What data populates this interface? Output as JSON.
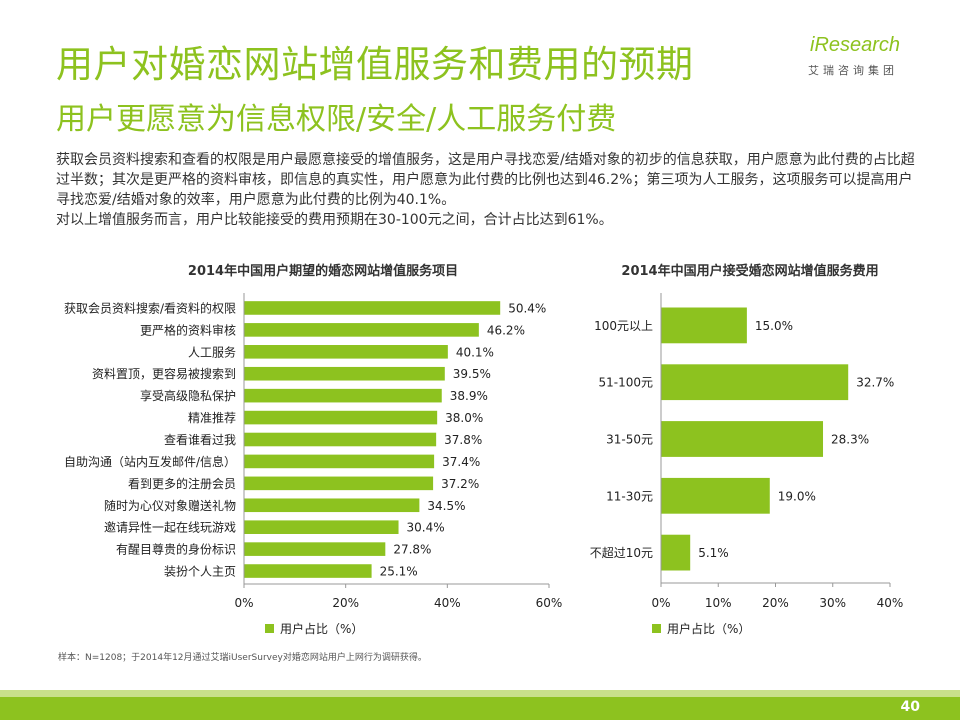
{
  "header": {
    "title": "用户对婚恋网站增值服务和费用的预期",
    "subtitle": "用户更愿意为信息权限/安全/人工服务付费"
  },
  "logo": {
    "brand": "iResearch",
    "brand_cn": "艾瑞咨询集团"
  },
  "intro": {
    "paragraph1": "获取会员资料搜索和查看的权限是用户最愿意接受的增值服务，这是用户寻找恋爱/结婚对象的初步的信息获取，用户愿意为此付费的占比超过半数；其次是更严格的资料审核，即信息的真实性，用户愿意为此付费的比例也达到46.2%；第三项为人工服务，这项服务可以提高用户寻找恋爱/结婚对象的效率，用户愿意为此付费的比例为40.1%。",
    "paragraph2": "对以上增值服务而言，用户比较能接受的费用预期在30-100元之间，合计占比达到61%。"
  },
  "chart_data": [
    {
      "type": "bar",
      "orientation": "horizontal",
      "title": "2014年中国用户期望的婚恋网站增值服务项目",
      "categories": [
        "获取会员资料搜索/看资料的权限",
        "更严格的资料审核",
        "人工服务",
        "资料置顶，更容易被搜索到",
        "享受高级隐私保护",
        "精准推荐",
        "查看谁看过我",
        "自助沟通（站内互发邮件/信息）",
        "看到更多的注册会员",
        "随时为心仪对象赠送礼物",
        "邀请异性一起在线玩游戏",
        "有醒目尊贵的身份标识",
        "装扮个人主页"
      ],
      "values": [
        50.4,
        46.2,
        40.1,
        39.5,
        38.9,
        38.0,
        37.8,
        37.4,
        37.2,
        34.5,
        30.4,
        27.8,
        25.1
      ],
      "value_labels": [
        "50.4%",
        "46.2%",
        "40.1%",
        "39.5%",
        "38.9%",
        "38.0%",
        "37.8%",
        "37.4%",
        "37.2%",
        "34.5%",
        "30.4%",
        "27.8%",
        "25.1%"
      ],
      "xlim": [
        0,
        60
      ],
      "ticks": [
        "0%",
        "20%",
        "40%",
        "60%"
      ],
      "legend": "用户占比（%）",
      "legend_position": "bottom",
      "grid": false,
      "color": "#8dc21f"
    },
    {
      "type": "bar",
      "orientation": "horizontal",
      "title": "2014年中国用户接受婚恋网站增值服务费用",
      "categories": [
        "100元以上",
        "51-100元",
        "31-50元",
        "11-30元",
        "不超过10元"
      ],
      "values": [
        15.0,
        32.7,
        28.3,
        19.0,
        5.1
      ],
      "value_labels": [
        "15.0%",
        "32.7%",
        "28.3%",
        "19.0%",
        "5.1%"
      ],
      "xlim": [
        0,
        40
      ],
      "ticks": [
        "0%",
        "10%",
        "20%",
        "30%",
        "40%"
      ],
      "legend": "用户占比（%）",
      "legend_position": "bottom",
      "grid": false,
      "color": "#8dc21f"
    }
  ],
  "footnote": "样本：N=1208；于2014年12月通过艾瑞iUserSurvey对婚恋网站用户上网行为调研获得。",
  "page_number": "40"
}
